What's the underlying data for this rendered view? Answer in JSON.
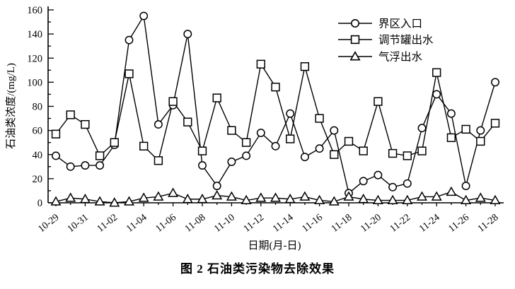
{
  "figure": {
    "caption": "图 2  石油类污染物去除效果"
  },
  "chart_data": {
    "type": "line",
    "title": "",
    "xlabel": "日期(月-日)",
    "ylabel": "石油类浓度/(mg/L)",
    "ylim": [
      0,
      160
    ],
    "ytick_major_step": 20,
    "ytick_minor_step": 10,
    "grid": false,
    "legend_position": "top-right-inside",
    "line_color": "#000000",
    "marker_fill": "#ffffff",
    "categories": [
      "10-29",
      "10-30",
      "10-31",
      "11-01",
      "11-02",
      "11-03",
      "11-04",
      "11-05",
      "11-06",
      "11-07",
      "11-08",
      "11-09",
      "11-10",
      "11-11",
      "11-12",
      "11-13",
      "11-14",
      "11-15",
      "11-16",
      "11-17",
      "11-18",
      "11-19",
      "11-20",
      "11-21",
      "11-22",
      "11-23",
      "11-24",
      "11-25",
      "11-26",
      "11-27",
      "11-28"
    ],
    "xtick_labels": [
      "10-29",
      "10-31",
      "11-02",
      "11-04",
      "11-06",
      "11-08",
      "11-10",
      "11-12",
      "11-14",
      "11-16",
      "11-18",
      "11-20",
      "11-22",
      "11-24",
      "11-26",
      "11-28"
    ],
    "series": [
      {
        "name": "界区入口",
        "marker": "circle",
        "values": [
          39,
          30,
          31,
          31,
          48,
          135,
          155,
          65,
          81,
          140,
          31,
          14,
          34,
          39,
          58,
          47,
          74,
          38,
          45,
          60,
          8,
          18,
          23,
          13,
          16,
          62,
          90,
          74,
          14,
          60,
          100
        ]
      },
      {
        "name": "调节罐出水",
        "marker": "square",
        "values": [
          57,
          73,
          65,
          39,
          50,
          107,
          47,
          35,
          84,
          67,
          43,
          87,
          60,
          50,
          115,
          96,
          53,
          113,
          70,
          40,
          51,
          43,
          84,
          41,
          39,
          43,
          108,
          54,
          61,
          51,
          66
        ]
      },
      {
        "name": "气浮出水",
        "marker": "triangle",
        "values": [
          1,
          4,
          3,
          1,
          0,
          1,
          4,
          5,
          8,
          3,
          3,
          6,
          5,
          2,
          4,
          4,
          3,
          5,
          2,
          1,
          5,
          3,
          2,
          2,
          2,
          5,
          5,
          9,
          2,
          4,
          2
        ]
      }
    ]
  }
}
